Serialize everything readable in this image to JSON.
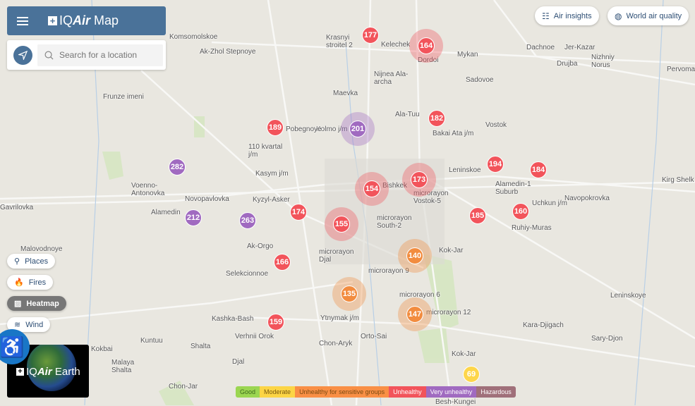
{
  "header": {
    "brand_prefix": "IQ",
    "brand_air": "Air",
    "brand_suffix": "Map"
  },
  "search": {
    "placeholder": "Search for a location"
  },
  "top_buttons": {
    "air_insights": "Air insights",
    "world_air_quality": "World air quality"
  },
  "layers": {
    "places": "Places",
    "fires": "Fires",
    "heatmap": "Heatmap",
    "wind": "Wind"
  },
  "earth": {
    "brand_prefix": "IQ",
    "brand_air": "Air",
    "brand_suffix": "Earth"
  },
  "legend": [
    {
      "label": "Good",
      "color": "#9bd651"
    },
    {
      "label": "Moderate",
      "color": "#fcd545"
    },
    {
      "label": "Unhealthy for sensitive groups",
      "color": "#f98f45"
    },
    {
      "label": "Unhealthy",
      "color": "#f2545b"
    },
    {
      "label": "Very unhealthy",
      "color": "#a06ac0"
    },
    {
      "label": "Hazardous",
      "color": "#a0707a"
    }
  ],
  "markers": [
    {
      "value": "177",
      "level": "red"
    },
    {
      "value": "164",
      "level": "red"
    },
    {
      "value": "182",
      "level": "red"
    },
    {
      "value": "201",
      "level": "purple"
    },
    {
      "value": "189",
      "level": "red"
    },
    {
      "value": "282",
      "level": "purple"
    },
    {
      "value": "194",
      "level": "red"
    },
    {
      "value": "184",
      "level": "red"
    },
    {
      "value": "154",
      "level": "red"
    },
    {
      "value": "173",
      "level": "red"
    },
    {
      "value": "174",
      "level": "red"
    },
    {
      "value": "155",
      "level": "red"
    },
    {
      "value": "185",
      "level": "red"
    },
    {
      "value": "160",
      "level": "red"
    },
    {
      "value": "212",
      "level": "purple"
    },
    {
      "value": "263",
      "level": "purple"
    },
    {
      "value": "140",
      "level": "orange"
    },
    {
      "value": "166",
      "level": "red"
    },
    {
      "value": "135",
      "level": "orange"
    },
    {
      "value": "147",
      "level": "orange"
    },
    {
      "value": "159",
      "level": "red"
    },
    {
      "value": "69",
      "level": "yellow"
    }
  ],
  "places": [
    "Komsomolskoe",
    "Ak-Zhol Stepnoye",
    "Krasnyi stroitel 2",
    "Kelechek",
    "Dordoi",
    "Mykan",
    "Dachnoe",
    "Jer-Kazar",
    "Drujba",
    "Nizhniy Norus",
    "Pervomay",
    "Nijnea Ala-archa",
    "Sadovoe",
    "Maevka",
    "Frunze imeni",
    "Ala-Tuu",
    "Bakai Ata j/m",
    "Vostok",
    "Kolmo j/m",
    "Pobegnoye",
    "110 kvartal j/m",
    "Voenno-Antonovka",
    "Kasym j/m",
    "Leninskoe",
    "Alamedin-1 Suburb",
    "Kirg Shelk",
    "Novopavlovka",
    "Kyzyl-Asker",
    "Bishkek",
    "microrayon Vostok-5",
    "Navopokrovka",
    "Gavrilovka",
    "Alamedin",
    "Uchkun j/m",
    "Ruhiy-Muras",
    "microrayon South-2",
    "Malovodnoye",
    "Ak-Orgo",
    "Kok-Jar",
    "Selekcionnoe",
    "microrayon Djal",
    "microrayon 9",
    "Leninskoye",
    "microrayon 6",
    "microrayon 12",
    "Kashka-Bash",
    "Ytnymak j/m",
    "Kara-Djigach",
    "Verhnii Orok",
    "Orto-Sai",
    "Sary-Djon",
    "Kuntuu",
    "Shalta",
    "Chon-Aryk",
    "Kokbai",
    "Malaya Shalta",
    "Djal",
    "Kok-Jar",
    "Chon-Jar",
    "Besh-Kungei"
  ]
}
